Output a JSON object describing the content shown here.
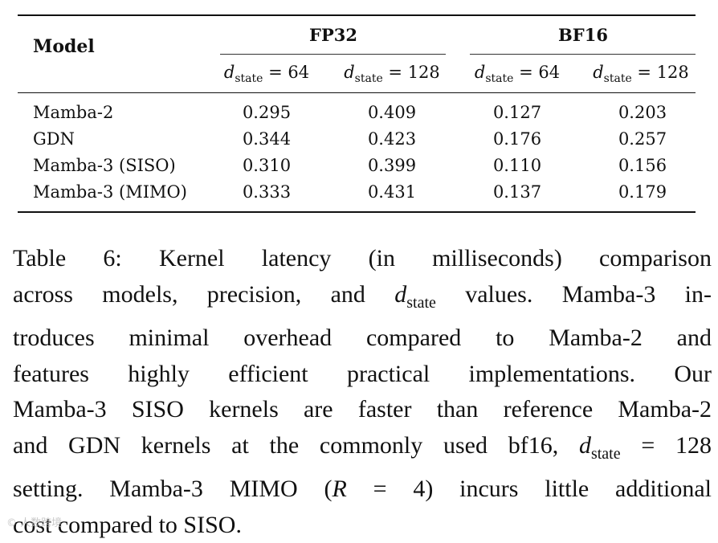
{
  "table": {
    "header_model": "Model",
    "groups": [
      {
        "label": "FP32"
      },
      {
        "label": "BF16"
      }
    ],
    "sub_headers": [
      {
        "var": "d",
        "sub": "state",
        "rest": " = 64"
      },
      {
        "var": "d",
        "sub": "state",
        "rest": " = 128"
      },
      {
        "var": "d",
        "sub": "state",
        "rest": " = 64"
      },
      {
        "var": "d",
        "sub": "state",
        "rest": " = 128"
      }
    ],
    "rows": [
      {
        "model": "Mamba-2",
        "values": [
          "0.295",
          "0.409",
          "0.127",
          "0.203"
        ]
      },
      {
        "model": "GDN",
        "values": [
          "0.344",
          "0.423",
          "0.176",
          "0.257"
        ]
      },
      {
        "model": "Mamba-3 (SISO)",
        "values": [
          "0.310",
          "0.399",
          "0.110",
          "0.156"
        ]
      },
      {
        "model": "Mamba-3 (MIMO)",
        "values": [
          "0.333",
          "0.431",
          "0.137",
          "0.179"
        ]
      }
    ]
  },
  "caption": {
    "line1": "Table 6:  Kernel latency (in milliseconds) comparison",
    "line2_a": "across models, precision, and ",
    "line2_var": "d",
    "line2_sub": "state",
    "line2_b": " values.  Mamba-3 in-",
    "line3": "troduces minimal overhead compared to Mamba-2 and",
    "line4": "features highly efficient practical implementations.  Our",
    "line5": "Mamba-3 SISO kernels are faster than reference Mamba-2",
    "line6_a": "and GDN kernels at the commonly used bf16, ",
    "line6_var": "d",
    "line6_sub": "state",
    "line6_b": " = 128",
    "line7_a": "setting.  Mamba-3 MIMO (",
    "line7_var": "R",
    "line7_b": " = 4) incurs little additional",
    "line8": "cost compared to SISO."
  },
  "watermark": {
    "text": "© 人数跨境"
  }
}
